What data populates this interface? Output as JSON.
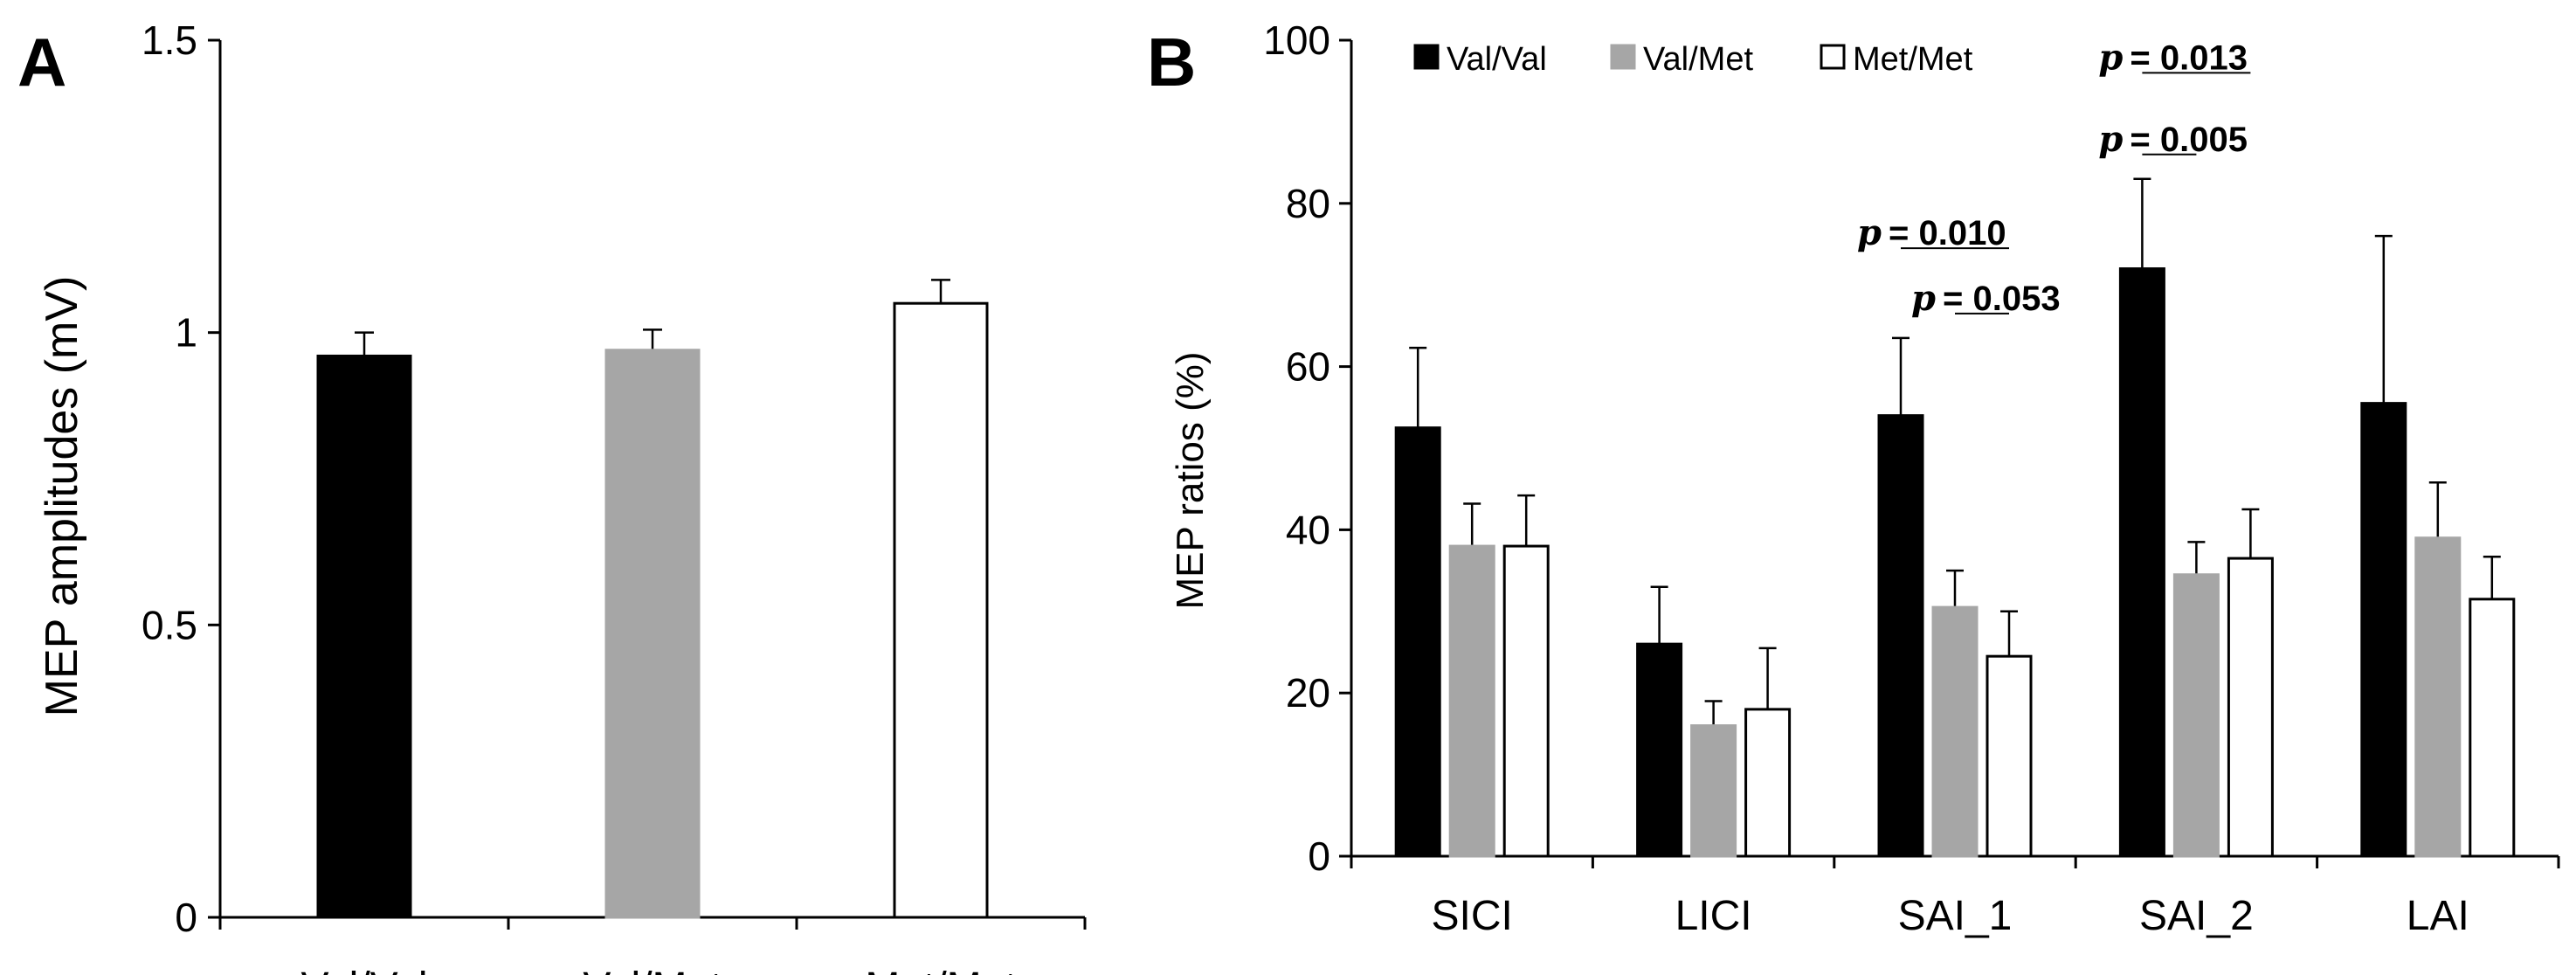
{
  "panels": {
    "a": {
      "label": "A"
    },
    "b": {
      "label": "B"
    }
  },
  "colors": {
    "val_val": "#000000",
    "val_met": "#a6a6a6",
    "met_met": "#ffffff",
    "stroke": "#000000"
  },
  "chart_data": [
    {
      "type": "bar",
      "panel": "A",
      "title": "",
      "xlabel": "",
      "ylabel": "MEP amplitudes (mV)",
      "ylim": [
        0,
        1.5
      ],
      "yticks": [
        0,
        0.5,
        1,
        1.5
      ],
      "ytick_labels": [
        "0",
        "0.5",
        "1",
        "1.5"
      ],
      "categories": [
        "Val/Val",
        "Val/Met",
        "Met/Met"
      ],
      "values": [
        0.96,
        0.97,
        1.05
      ],
      "errors": [
        0.04,
        0.035,
        0.04
      ],
      "bar_colors": [
        "#000000",
        "#a6a6a6",
        "#ffffff"
      ],
      "grid": false,
      "legend": null
    },
    {
      "type": "bar",
      "panel": "B",
      "title": "",
      "xlabel": "",
      "ylabel": "MEP ratios (%)",
      "ylim": [
        0,
        100
      ],
      "yticks": [
        0,
        20,
        40,
        60,
        80,
        100
      ],
      "ytick_labels": [
        "0",
        "20",
        "40",
        "60",
        "80",
        "100"
      ],
      "categories": [
        "SICI",
        "LICI",
        "SAI_1",
        "SAI_2",
        "LAI"
      ],
      "series": [
        {
          "name": "Val/Val",
          "color": "#000000",
          "values": [
            52.5,
            26,
            54,
            72,
            55.5
          ],
          "errors": [
            9.8,
            7,
            9.5,
            11,
            20.5
          ]
        },
        {
          "name": "Val/Met",
          "color": "#a6a6a6",
          "values": [
            38,
            16,
            30.5,
            34.5,
            39
          ],
          "errors": [
            5.2,
            3,
            4.5,
            4,
            6.8
          ]
        },
        {
          "name": "Met/Met",
          "color": "#ffffff",
          "values": [
            38,
            18,
            24.5,
            36.5,
            31.5
          ],
          "errors": [
            6.2,
            7.5,
            5.5,
            6,
            5.2
          ]
        }
      ],
      "legend": {
        "position": "top",
        "entries": [
          "Val/Val",
          "Val/Met",
          "Met/Met"
        ]
      },
      "grid": false,
      "annotations": [
        {
          "prefix": "p",
          "text": "= 0.053",
          "category": "SAI_1",
          "from_series": 1,
          "to_series": 2,
          "level": 66.5
        },
        {
          "prefix": "p",
          "text": "= 0.010",
          "category": "SAI_1",
          "from_series": 0,
          "to_series": 2,
          "level": 74.5
        },
        {
          "prefix": "p",
          "text": "= 0.005",
          "category": "SAI_2",
          "from_series": 0,
          "to_series": 1,
          "level": 86
        },
        {
          "prefix": "p",
          "text": "= 0.013",
          "category": "SAI_2",
          "from_series": 0,
          "to_series": 2,
          "level": 96
        }
      ]
    }
  ]
}
